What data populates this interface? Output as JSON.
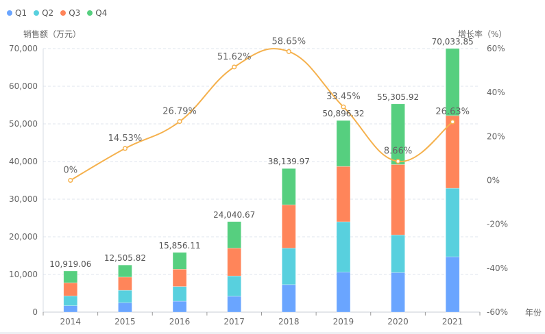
{
  "chart_data": {
    "type": "bar",
    "subtype": "stacked-bar-with-line",
    "categories": [
      "2014",
      "2015",
      "2016",
      "2017",
      "2018",
      "2019",
      "2020",
      "2021"
    ],
    "xlabel": "年份",
    "ylabel": "销售额（万元）",
    "ylabel_right": "增长率（%）",
    "ylim": [
      0,
      70000
    ],
    "ylim_right": [
      -60,
      60
    ],
    "yticks": [
      "0",
      "10,000",
      "20,000",
      "30,000",
      "40,000",
      "50,000",
      "60,000",
      "70,000"
    ],
    "yticks_right": [
      "-60%",
      "-40%",
      "-20%",
      "0%",
      "20%",
      "40%",
      "60%"
    ],
    "grid": true,
    "legend_position": "top-left",
    "series": [
      {
        "name": "Q1",
        "type": "bar",
        "color": "#6aa5ff",
        "values": [
          1700,
          2500,
          2900,
          4200,
          7300,
          10600,
          10500,
          14700
        ]
      },
      {
        "name": "Q2",
        "type": "bar",
        "color": "#58d0de",
        "values": [
          2600,
          3300,
          3900,
          5400,
          9700,
          13400,
          10000,
          18200
        ]
      },
      {
        "name": "Q3",
        "type": "bar",
        "color": "#ff855a",
        "values": [
          3500,
          3500,
          4600,
          7400,
          11500,
          14700,
          18700,
          19300
        ]
      },
      {
        "name": "Q4",
        "type": "bar",
        "color": "#56cf7f",
        "values": [
          3119.06,
          3205.82,
          4456.11,
          7040.67,
          9639.97,
          12196.32,
          16105.92,
          17833.85
        ]
      },
      {
        "name": "增长率",
        "type": "line",
        "axis": "right",
        "color": "#f5b14d",
        "smooth": true,
        "values": [
          0,
          14.53,
          26.79,
          51.62,
          58.65,
          33.45,
          8.66,
          26.63
        ]
      }
    ],
    "totals": [
      10919.06,
      12505.82,
      15856.11,
      24040.67,
      38139.97,
      50896.32,
      55305.92,
      70033.85
    ],
    "total_labels": [
      "10,919.06",
      "12,505.82",
      "15,856.11",
      "24,040.67",
      "38,139.97",
      "50,896.32",
      "55,305.92",
      "70,033.85"
    ],
    "line_labels": [
      "0%",
      "14.53%",
      "26.79%",
      "51.62%",
      "58.65%",
      "33.45%",
      "8.66%",
      "26.63%"
    ]
  },
  "legend": [
    {
      "label": "Q1",
      "color": "#6aa5ff"
    },
    {
      "label": "Q2",
      "color": "#58d0de"
    },
    {
      "label": "Q3",
      "color": "#ff855a"
    },
    {
      "label": "Q4",
      "color": "#56cf7f"
    }
  ]
}
